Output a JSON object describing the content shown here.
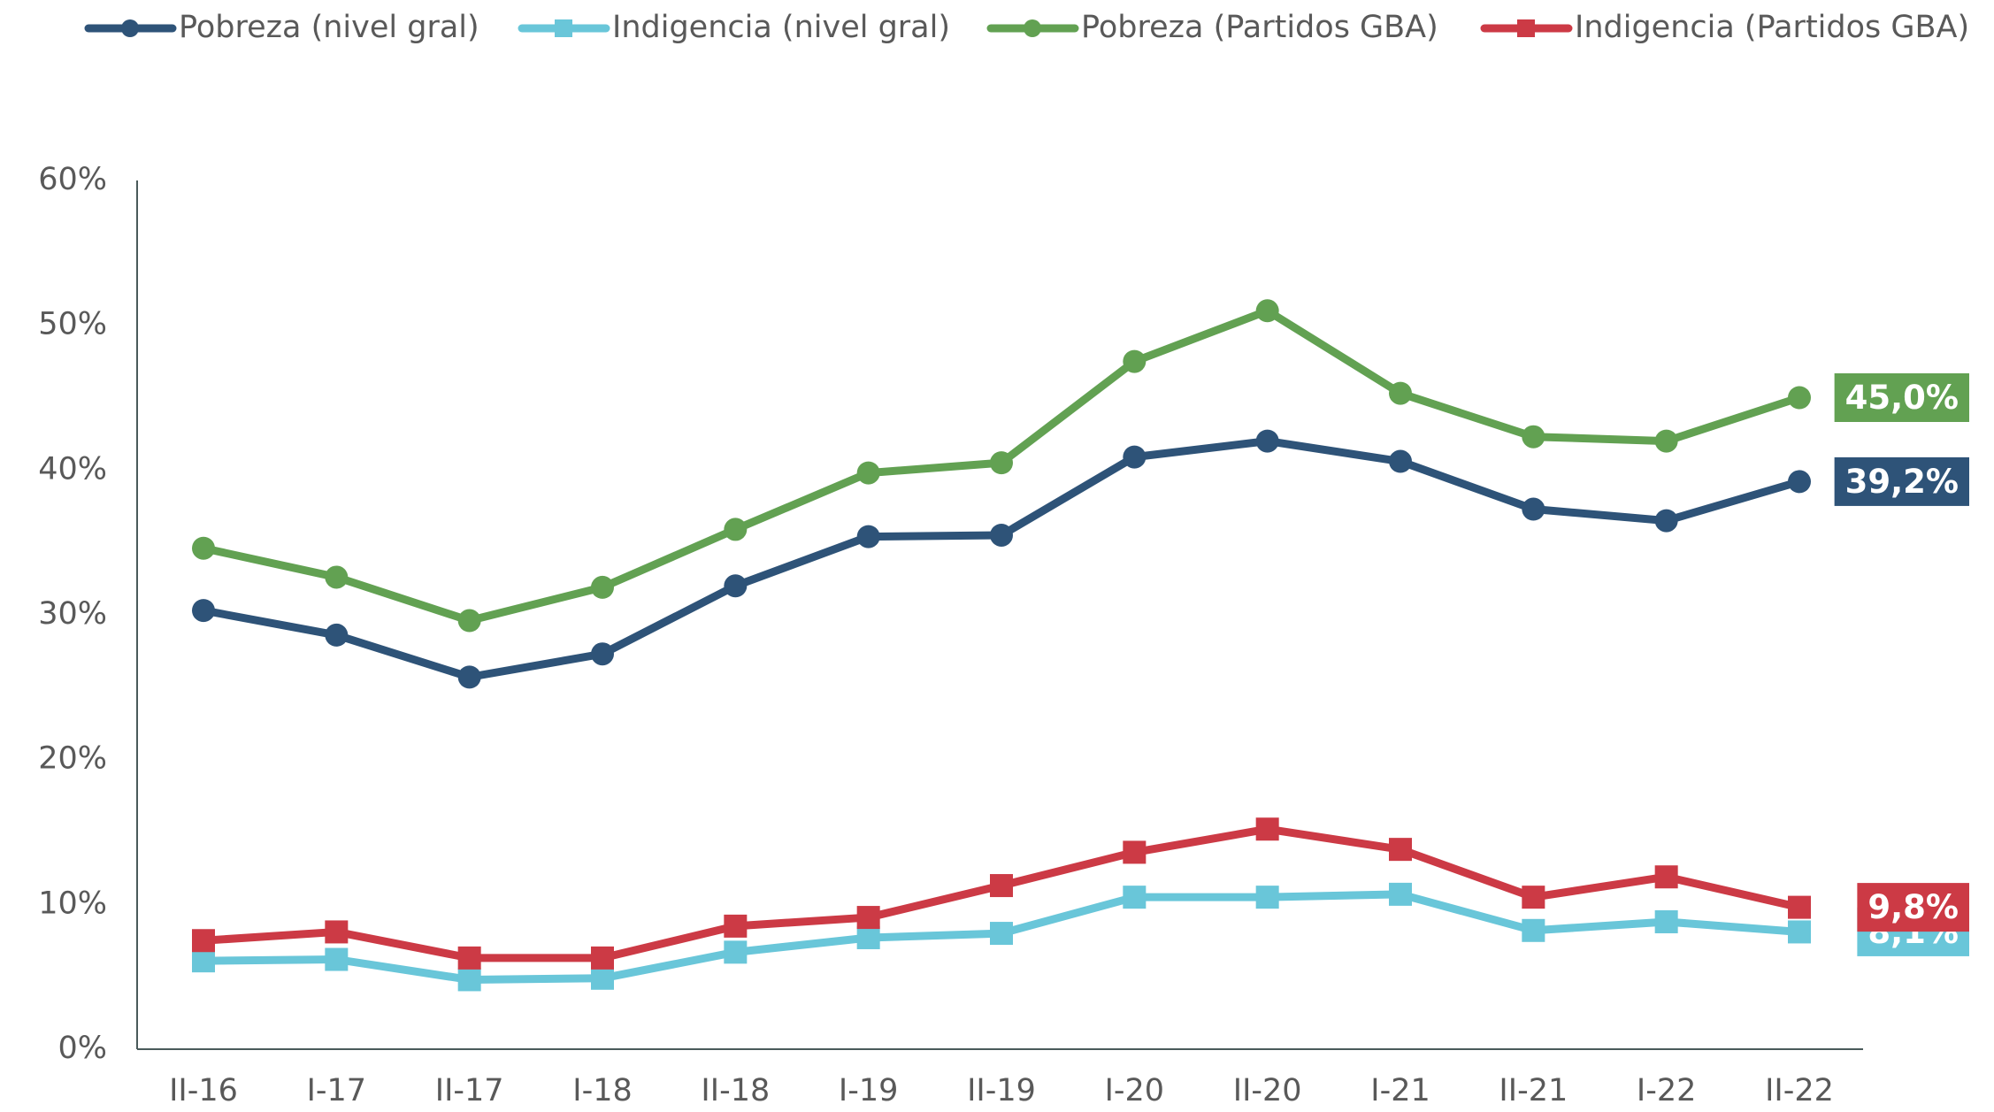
{
  "chart_data": {
    "type": "line",
    "categories": [
      "II-16",
      "I-17",
      "II-17",
      "I-18",
      "II-18",
      "I-19",
      "II-19",
      "I-20",
      "II-20",
      "I-21",
      "II-21",
      "I-22",
      "II-22"
    ],
    "series": [
      {
        "name": "Pobreza (nivel gral)",
        "color": "#2e5378",
        "marker": "circle",
        "values": [
          30.3,
          28.6,
          25.7,
          27.3,
          32.0,
          35.4,
          35.5,
          40.9,
          42.0,
          40.6,
          37.3,
          36.5,
          39.2
        ],
        "value_labels": [
          null,
          null,
          null,
          null,
          null,
          null,
          null,
          null,
          null,
          null,
          null,
          null,
          "39,2%"
        ]
      },
      {
        "name": "Indigencia (nivel gral)",
        "color": "#69c6d9",
        "marker": "square",
        "values": [
          6.1,
          6.2,
          4.8,
          4.9,
          6.7,
          7.7,
          8.0,
          10.5,
          10.5,
          10.7,
          8.2,
          8.8,
          8.1
        ],
        "value_labels": [
          null,
          null,
          null,
          null,
          null,
          null,
          null,
          null,
          null,
          null,
          null,
          null,
          "8,1%"
        ]
      },
      {
        "name": "Pobreza (Partidos GBA)",
        "color": "#62a152",
        "marker": "circle",
        "values": [
          34.6,
          32.6,
          29.6,
          31.9,
          35.9,
          39.8,
          40.5,
          47.5,
          51.0,
          45.3,
          42.3,
          42.0,
          45.0
        ],
        "value_labels": [
          null,
          null,
          null,
          null,
          null,
          null,
          null,
          null,
          null,
          null,
          null,
          null,
          "45,0%"
        ]
      },
      {
        "name": "Indigencia (Partidos GBA)",
        "color": "#cc3a45",
        "marker": "square",
        "values": [
          7.5,
          8.1,
          6.3,
          6.3,
          8.5,
          9.1,
          11.3,
          13.6,
          15.2,
          13.8,
          10.5,
          11.9,
          9.8
        ],
        "value_labels": [
          null,
          null,
          null,
          null,
          null,
          null,
          null,
          null,
          null,
          null,
          null,
          null,
          "9,8%"
        ]
      }
    ],
    "ylim": [
      0,
      60
    ],
    "yticks": [
      {
        "value": 0,
        "label": "0%"
      },
      {
        "value": 10,
        "label": "10%"
      },
      {
        "value": 20,
        "label": "20%"
      },
      {
        "value": 30,
        "label": "30%"
      },
      {
        "value": 40,
        "label": "40%"
      },
      {
        "value": 50,
        "label": "50%"
      },
      {
        "value": 60,
        "label": "60%"
      }
    ],
    "legend": "top",
    "grid": false
  }
}
